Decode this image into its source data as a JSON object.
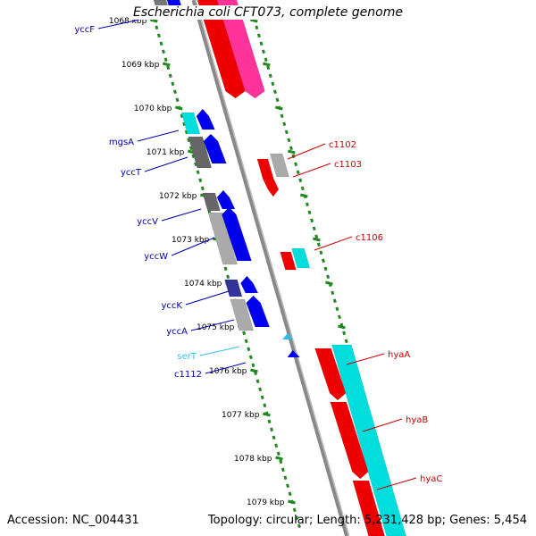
{
  "title": "Escherichia coli CFT073, complete genome",
  "accession": "Accession: NC_004431",
  "summary": "Topology: circular; Length: 5,231,428 bp; Genes: 5,454",
  "ruler_ticks": [
    {
      "label": "1068 kbp",
      "kbp": 1068
    },
    {
      "label": "1069 kbp",
      "kbp": 1069
    },
    {
      "label": "1070 kbp",
      "kbp": 1070
    },
    {
      "label": "1071 kbp",
      "kbp": 1071
    },
    {
      "label": "1072 kbp",
      "kbp": 1072
    },
    {
      "label": "1073 kbp",
      "kbp": 1073
    },
    {
      "label": "1074 kbp",
      "kbp": 1074
    },
    {
      "label": "1075 kbp",
      "kbp": 1075
    },
    {
      "label": "1076 kbp",
      "kbp": 1076
    },
    {
      "label": "1077 kbp",
      "kbp": 1077
    },
    {
      "label": "1078 kbp",
      "kbp": 1078
    },
    {
      "label": "1079 kbp",
      "kbp": 1079
    }
  ],
  "gene_labels_left": [
    {
      "name": "yccF",
      "color": "#0000aa"
    },
    {
      "name": "mgsA",
      "color": "#0000aa"
    },
    {
      "name": "yccT",
      "color": "#0000aa"
    },
    {
      "name": "yccV",
      "color": "#0000aa"
    },
    {
      "name": "yccW",
      "color": "#0000aa"
    },
    {
      "name": "yccK",
      "color": "#0000aa"
    },
    {
      "name": "yccA",
      "color": "#0000aa"
    },
    {
      "name": "serT",
      "color": "#33bbee"
    },
    {
      "name": "c1112",
      "color": "#0000aa"
    }
  ],
  "gene_labels_right": [
    {
      "name": "c1102",
      "color": "#cc0000"
    },
    {
      "name": "c1103",
      "color": "#cc0000"
    },
    {
      "name": "c1106",
      "color": "#cc0000"
    },
    {
      "name": "hyaA",
      "color": "#cc0000"
    },
    {
      "name": "hyaB",
      "color": "#cc0000"
    },
    {
      "name": "hyaC",
      "color": "#cc0000"
    }
  ],
  "colors": {
    "backbone": "#888888",
    "tick": "#228822",
    "cds_forward": "#ee0000",
    "cds_reverse": "#0000ee",
    "rna": "#00dddd",
    "gray": "#aaaaaa",
    "pink": "#ff3399"
  }
}
